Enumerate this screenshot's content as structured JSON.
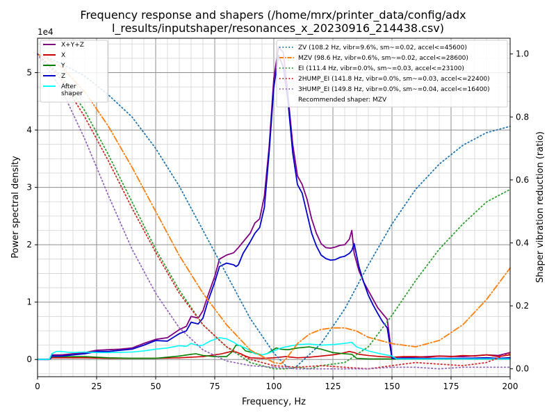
{
  "chart_data": {
    "type": "line",
    "title_line1": "Frequency response and shapers (/home/mrx/printer_data/config/adx",
    "title_line2": "l_results/inputshaper/resonances_x_20230916_214438.csv)",
    "xlabel": "Frequency, Hz",
    "ylabel": "Power spectral density",
    "y2label": "Shaper vibration reduction (ratio)",
    "offset_text": "1e4",
    "xlim": [
      0,
      200
    ],
    "ylim": [
      -0.3,
      5.6
    ],
    "y2lim": [
      -0.025,
      1.05
    ],
    "x_ticks": [
      0,
      25,
      50,
      75,
      100,
      125,
      150,
      175,
      200
    ],
    "x_tick_labels": [
      "0",
      "25",
      "50",
      "75",
      "100",
      "125",
      "150",
      "175",
      "200"
    ],
    "y_ticks": [
      0,
      1,
      2,
      3,
      4,
      5
    ],
    "y_tick_labels": [
      "0",
      "1",
      "2",
      "3",
      "4",
      "5"
    ],
    "y2_ticks": [
      0,
      0.2,
      0.4,
      0.6,
      0.8,
      1.0
    ],
    "y2_tick_labels": [
      "0.0",
      "0.2",
      "0.4",
      "0.6",
      "0.8",
      "1.0"
    ],
    "grid": true,
    "legend_left": [
      {
        "label": "X+Y+Z",
        "color": "#800080"
      },
      {
        "label": "X",
        "color": "#cc0000"
      },
      {
        "label": "Y",
        "color": "#008000"
      },
      {
        "label": "Z",
        "color": "#0000cc"
      },
      {
        "label": "After\nshaper",
        "color": "#00ffff"
      }
    ],
    "legend_right": [
      {
        "label": "ZV (108.2 Hz, vibr=9.6%, sm~=0.02, accel<=45600)",
        "color": "#1f77b4",
        "style": "dotted"
      },
      {
        "label": "MZV (98.6 Hz, vibr=0.6%, sm~=0.02, accel<=28600)",
        "color": "#ff7f0e",
        "style": "dashdot"
      },
      {
        "label": "EI (111.4 Hz, vibr=0.0%, sm~=0.03, accel<=23100)",
        "color": "#2ca02c",
        "style": "dotted"
      },
      {
        "label": "2HUMP_EI (141.8 Hz, vibr=0.0%, sm~=0.03, accel<=22400)",
        "color": "#d62728",
        "style": "dotted"
      },
      {
        "label": "3HUMP_EI (149.8 Hz, vibr=0.0%, sm~=0.04, accel<=16400)",
        "color": "#9467bd",
        "style": "dotted"
      },
      {
        "label": "Recommended shaper: MZV",
        "color": "",
        "style": "none"
      }
    ],
    "series": [
      {
        "name": "X+Y+Z",
        "color": "#800080",
        "width": 1.8,
        "axis": "left",
        "x": [
          0,
          5,
          6,
          10,
          15,
          20,
          25,
          30,
          35,
          40,
          45,
          50,
          55,
          60,
          63,
          65,
          68,
          70,
          72,
          75,
          77,
          80,
          83,
          85,
          87,
          90,
          92,
          94,
          96,
          98,
          100,
          102,
          104,
          106,
          108,
          110,
          112,
          114,
          116,
          118,
          120,
          122,
          124,
          126,
          128,
          130,
          132,
          133,
          134,
          136,
          138,
          140,
          142,
          144,
          146,
          148,
          150,
          151,
          155,
          160,
          170,
          180,
          190,
          195,
          200
        ],
        "y": [
          0,
          0,
          0.08,
          0.08,
          0.1,
          0.12,
          0.16,
          0.17,
          0.18,
          0.2,
          0.28,
          0.35,
          0.38,
          0.52,
          0.58,
          0.75,
          0.72,
          0.85,
          1.1,
          1.45,
          1.75,
          1.82,
          1.86,
          1.95,
          2.05,
          2.2,
          2.38,
          2.45,
          2.85,
          3.7,
          4.9,
          5.45,
          5.35,
          4.6,
          3.75,
          3.2,
          3.05,
          2.8,
          2.45,
          2.2,
          2.02,
          1.95,
          1.94,
          1.96,
          1.99,
          2.0,
          2.1,
          2.25,
          1.85,
          1.55,
          1.35,
          1.2,
          1.05,
          0.9,
          0.8,
          0.7,
          0.05,
          0.02,
          0.03,
          0.04,
          0.06,
          0.05,
          0.08,
          0.07,
          0.12
        ]
      },
      {
        "name": "X",
        "color": "#cc0000",
        "width": 1.6,
        "axis": "left",
        "x": [
          0,
          5,
          6,
          10,
          20,
          30,
          40,
          50,
          60,
          70,
          75,
          78,
          80,
          82,
          84,
          86,
          88,
          90,
          95,
          100,
          105,
          110,
          115,
          120,
          125,
          128,
          130,
          132,
          134,
          136,
          140,
          145,
          150,
          155,
          160,
          165,
          170,
          175,
          180,
          185,
          190,
          195,
          200
        ],
        "y": [
          0,
          0,
          0.03,
          0.03,
          0.03,
          0.02,
          0.02,
          0.02,
          0.03,
          0.05,
          0.08,
          0.1,
          0.12,
          0.14,
          0.13,
          0.1,
          0.06,
          0.03,
          0.02,
          0.03,
          0.05,
          0.03,
          0.04,
          0.06,
          0.08,
          0.1,
          0.12,
          0.14,
          0.12,
          0.09,
          0.07,
          0.05,
          0.04,
          0.05,
          0.05,
          0.04,
          0.06,
          0.05,
          0.07,
          0.06,
          0.08,
          0.05,
          0.08
        ]
      },
      {
        "name": "Y",
        "color": "#008000",
        "width": 1.6,
        "axis": "left",
        "x": [
          0,
          5,
          6,
          10,
          20,
          30,
          40,
          50,
          55,
          60,
          65,
          67,
          70,
          75,
          80,
          82,
          84,
          86,
          88,
          90,
          95,
          97,
          99,
          101,
          103,
          106,
          110,
          115,
          120,
          125,
          130,
          133,
          135,
          140,
          145,
          150,
          200
        ],
        "y": [
          0,
          0,
          0.05,
          0.05,
          0.05,
          0.03,
          0.02,
          0.02,
          0.04,
          0.06,
          0.09,
          0.1,
          0.07,
          0.05,
          0.05,
          0.12,
          0.25,
          0.24,
          0.15,
          0.13,
          0.08,
          0.1,
          0.15,
          0.2,
          0.18,
          0.17,
          0.2,
          0.22,
          0.18,
          0.12,
          0.1,
          0.09,
          0.02,
          0.01,
          0.01,
          0.01,
          0.01
        ]
      },
      {
        "name": "Z",
        "color": "#0000cc",
        "width": 1.8,
        "axis": "left",
        "x": [
          0,
          5,
          6,
          10,
          15,
          20,
          25,
          30,
          35,
          40,
          45,
          50,
          55,
          60,
          63,
          65,
          68,
          70,
          72,
          75,
          77,
          80,
          83,
          84,
          85,
          87,
          90,
          92,
          94,
          96,
          98,
          100,
          102,
          104,
          106,
          108,
          110,
          112,
          114,
          116,
          118,
          120,
          122,
          124,
          126,
          128,
          130,
          132,
          133,
          134,
          136,
          138,
          140,
          142,
          144,
          146,
          148,
          150,
          151,
          155,
          160,
          170,
          180,
          190,
          195,
          200
        ],
        "y": [
          0,
          0,
          0.06,
          0.06,
          0.08,
          0.1,
          0.14,
          0.14,
          0.16,
          0.18,
          0.25,
          0.33,
          0.32,
          0.45,
          0.5,
          0.65,
          0.62,
          0.72,
          1.0,
          1.35,
          1.62,
          1.68,
          1.65,
          1.62,
          1.65,
          1.85,
          2.05,
          2.2,
          2.3,
          2.65,
          3.6,
          4.75,
          5.3,
          5.1,
          4.5,
          3.6,
          3.05,
          2.9,
          2.55,
          2.2,
          1.98,
          1.82,
          1.76,
          1.73,
          1.74,
          1.78,
          1.8,
          1.85,
          1.9,
          2.02,
          1.62,
          1.35,
          1.12,
          0.95,
          0.8,
          0.66,
          0.55,
          0.02,
          0.02,
          0.02,
          0.02,
          0.02,
          0.02,
          0.03,
          0.02,
          0.03
        ]
      },
      {
        "name": "After\nshaper",
        "color": "#00ffff",
        "width": 1.6,
        "axis": "left",
        "x": [
          0,
          5,
          6,
          8,
          10,
          12,
          15,
          20,
          25,
          30,
          40,
          45,
          50,
          55,
          60,
          63,
          65,
          68,
          70,
          73,
          75,
          77,
          80,
          83,
          85,
          88,
          90,
          92,
          95,
          97,
          100,
          103,
          105,
          110,
          115,
          120,
          125,
          130,
          133,
          135,
          140,
          145,
          150,
          152,
          160,
          200
        ],
        "y": [
          0,
          0,
          0.1,
          0.14,
          0.14,
          0.13,
          0.12,
          0.13,
          0.12,
          0.12,
          0.13,
          0.15,
          0.18,
          0.2,
          0.24,
          0.23,
          0.28,
          0.24,
          0.25,
          0.32,
          0.35,
          0.38,
          0.36,
          0.3,
          0.25,
          0.2,
          0.15,
          0.1,
          0.08,
          0.1,
          0.15,
          0.2,
          0.22,
          0.26,
          0.27,
          0.25,
          0.26,
          0.28,
          0.3,
          0.22,
          0.15,
          0.1,
          0.06,
          0.01,
          0.01,
          0.01
        ]
      },
      {
        "name": "ZV",
        "color": "#1f77b4",
        "width": 1.8,
        "dash": "1.5,3.5",
        "axis": "right",
        "x": [
          0,
          10,
          20,
          30,
          40,
          50,
          60,
          70,
          80,
          90,
          100,
          105,
          108,
          110,
          120,
          130,
          140,
          150,
          160,
          170,
          180,
          190,
          200
        ],
        "y": [
          1.0,
          0.97,
          0.93,
          0.87,
          0.8,
          0.7,
          0.58,
          0.44,
          0.3,
          0.16,
          0.05,
          0.01,
          0.0,
          0.01,
          0.08,
          0.19,
          0.33,
          0.46,
          0.57,
          0.65,
          0.71,
          0.75,
          0.77
        ]
      },
      {
        "name": "MZV",
        "color": "#ff7f0e",
        "width": 1.8,
        "dash": "9,3,1.5,3",
        "axis": "right",
        "x": [
          0,
          10,
          20,
          30,
          40,
          50,
          60,
          70,
          80,
          90,
          95,
          100,
          103,
          105,
          110,
          115,
          120,
          125,
          130,
          135,
          140,
          150,
          160,
          170,
          180,
          190,
          200
        ],
        "y": [
          1.0,
          0.96,
          0.88,
          0.77,
          0.64,
          0.5,
          0.36,
          0.24,
          0.14,
          0.06,
          0.04,
          0.02,
          0.016,
          0.03,
          0.08,
          0.11,
          0.125,
          0.13,
          0.13,
          0.12,
          0.1,
          0.08,
          0.07,
          0.09,
          0.14,
          0.22,
          0.32
        ]
      },
      {
        "name": "EI",
        "color": "#2ca02c",
        "width": 1.8,
        "dash": "1.5,3.5",
        "axis": "right",
        "x": [
          0,
          10,
          20,
          30,
          40,
          50,
          60,
          70,
          80,
          90,
          100,
          105,
          110,
          115,
          120,
          130,
          140,
          150,
          160,
          170,
          180,
          190,
          200
        ],
        "y": [
          1.0,
          0.93,
          0.82,
          0.68,
          0.53,
          0.38,
          0.25,
          0.14,
          0.07,
          0.02,
          0.0,
          0.0,
          0.005,
          0.0,
          0.01,
          0.02,
          0.07,
          0.17,
          0.28,
          0.38,
          0.46,
          0.53,
          0.57
        ]
      },
      {
        "name": "2HUMP_EI",
        "color": "#d62728",
        "width": 1.8,
        "dash": "1.5,3.5",
        "axis": "right",
        "x": [
          0,
          10,
          20,
          30,
          40,
          50,
          60,
          70,
          80,
          90,
          100,
          110,
          120,
          130,
          140,
          150,
          160,
          170,
          180,
          190,
          200
        ],
        "y": [
          1.0,
          0.92,
          0.8,
          0.66,
          0.51,
          0.37,
          0.24,
          0.14,
          0.07,
          0.03,
          0.01,
          0.005,
          0.01,
          0.005,
          0.0,
          0.01,
          0.02,
          0.015,
          0.01,
          0.02,
          0.05
        ]
      },
      {
        "name": "3HUMP_EI",
        "color": "#9467bd",
        "width": 1.8,
        "dash": "1.5,3.5",
        "axis": "right",
        "x": [
          0,
          10,
          20,
          30,
          40,
          50,
          60,
          70,
          80,
          90,
          100,
          110,
          120,
          130,
          140,
          150,
          160,
          170,
          180,
          190,
          200
        ],
        "y": [
          1.0,
          0.89,
          0.73,
          0.55,
          0.38,
          0.24,
          0.13,
          0.06,
          0.025,
          0.01,
          0.005,
          0.0,
          0.0,
          0.0,
          0.0,
          0.005,
          0.005,
          0.0,
          0.005,
          0.005,
          0.005
        ]
      }
    ]
  }
}
